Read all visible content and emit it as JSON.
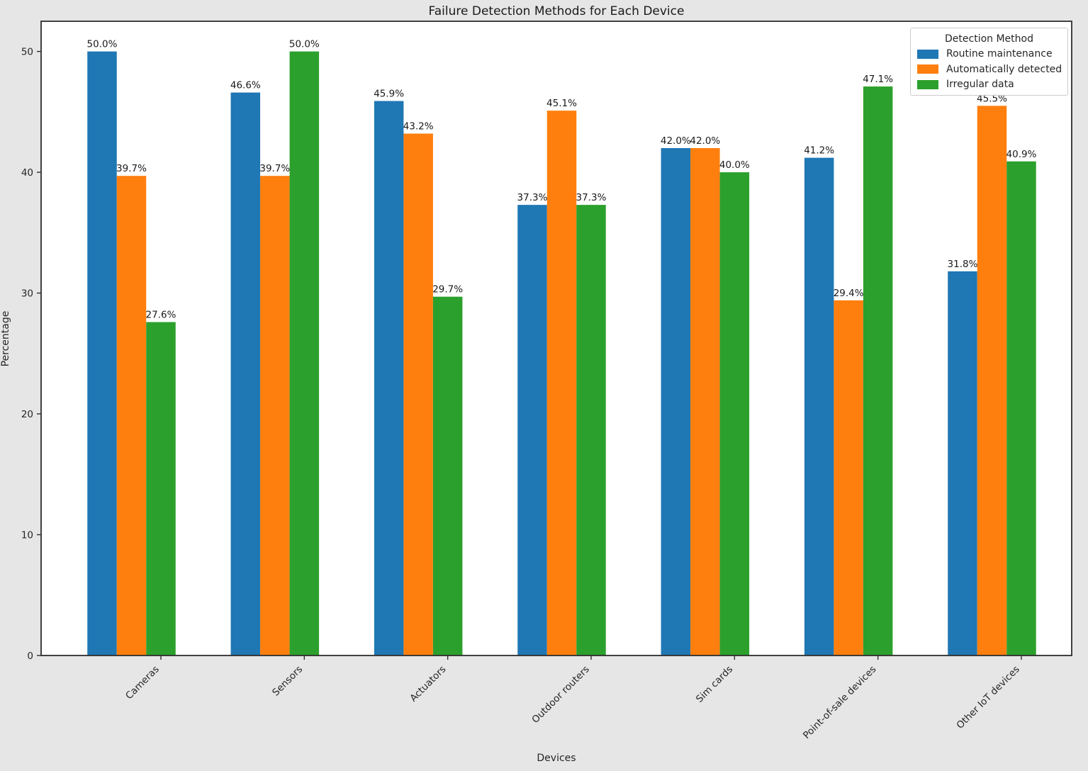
{
  "figure": {
    "background_color": "#e6e6e6",
    "plot_background_color": "#ffffff",
    "spine_color": "#2e2e2e",
    "text_color": "#262626"
  },
  "chart_data": {
    "type": "bar",
    "title": "Failure Detection Methods for Each Device",
    "xlabel": "Devices",
    "ylabel": "Percentage",
    "categories": [
      "Cameras",
      "Sensors",
      "Actuators",
      "Outdoor routers",
      "Sim cards",
      "Point-of-sale devices",
      "Other IoT devices"
    ],
    "series": [
      {
        "name": "Routine maintenance",
        "color": "#1f77b4",
        "values": [
          50.0,
          46.6,
          45.9,
          37.3,
          42.0,
          41.2,
          31.8
        ]
      },
      {
        "name": "Automatically detected",
        "color": "#ff7f0e",
        "values": [
          39.7,
          39.7,
          43.2,
          45.1,
          42.0,
          29.4,
          45.5
        ]
      },
      {
        "name": "Irregular data",
        "color": "#2ca02c",
        "values": [
          27.6,
          50.0,
          29.7,
          37.3,
          40.0,
          47.1,
          40.9
        ]
      }
    ],
    "value_label_suffix": "%",
    "y_ticks": [
      0,
      10,
      20,
      30,
      40,
      50
    ],
    "ylim": [
      0,
      52.5
    ],
    "grid": false,
    "legend": {
      "title": "Detection Method",
      "position": "upper right"
    }
  }
}
